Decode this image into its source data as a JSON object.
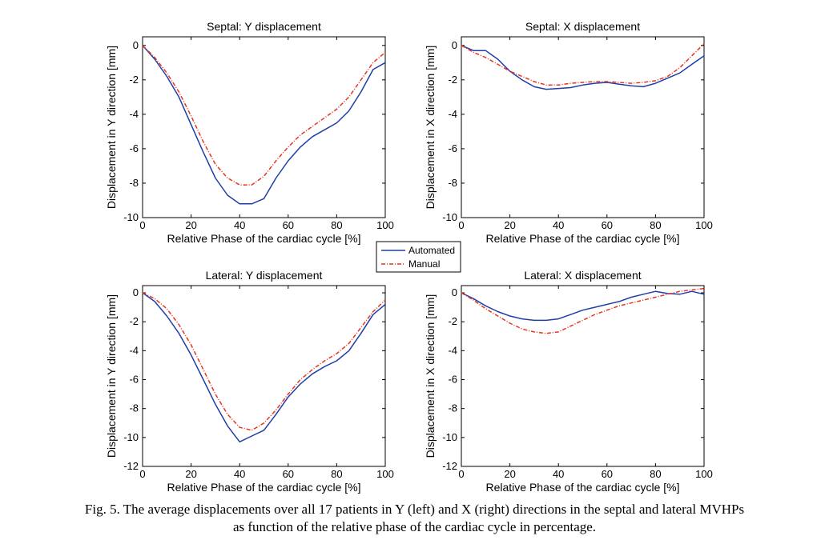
{
  "legend": {
    "entries": [
      {
        "label": "Automated",
        "color": "#1f3ea8",
        "style": "solid"
      },
      {
        "label": "Manual",
        "color": "#e8351f",
        "style": "dash-dot"
      }
    ]
  },
  "caption": {
    "line1": "Fig. 5. The average displacements over all 17 patients in Y (left) and X (right) directions in the septal and lateral MVHPs",
    "line2": "as function of the relative phase of the cardiac cycle in percentage."
  },
  "chart_data": [
    {
      "type": "line",
      "title": "Septal: Y displacement",
      "xlabel": "Relative Phase of the cardiac cycle [%]",
      "ylabel": "Displacement in Y direction [mm]",
      "xlim": [
        0,
        100
      ],
      "ylim": [
        -10,
        0.5
      ],
      "xticks": [
        0,
        20,
        40,
        60,
        80,
        100
      ],
      "yticks": [
        0,
        -2,
        -4,
        -6,
        -8,
        -10
      ],
      "grid": false,
      "x": [
        0,
        5,
        10,
        15,
        20,
        25,
        30,
        35,
        40,
        45,
        50,
        55,
        60,
        65,
        70,
        75,
        80,
        85,
        90,
        95,
        100
      ],
      "series": [
        {
          "name": "Automated",
          "values": [
            0,
            -0.8,
            -1.8,
            -3.0,
            -4.6,
            -6.2,
            -7.7,
            -8.7,
            -9.2,
            -9.2,
            -8.9,
            -7.7,
            -6.7,
            -5.9,
            -5.3,
            -4.9,
            -4.5,
            -3.8,
            -2.7,
            -1.4,
            -1.0
          ]
        },
        {
          "name": "Manual",
          "values": [
            0,
            -0.7,
            -1.6,
            -2.7,
            -4.1,
            -5.6,
            -6.9,
            -7.7,
            -8.1,
            -8.1,
            -7.6,
            -6.7,
            -5.9,
            -5.2,
            -4.7,
            -4.2,
            -3.7,
            -3.0,
            -2.0,
            -1.0,
            -0.4
          ]
        }
      ]
    },
    {
      "type": "line",
      "title": "Septal: X displacement",
      "xlabel": "Relative Phase of the cardiac cycle [%]",
      "ylabel": "Displacement in X direction [mm]",
      "xlim": [
        0,
        100
      ],
      "ylim": [
        -10,
        0.5
      ],
      "xticks": [
        0,
        20,
        40,
        60,
        80,
        100
      ],
      "yticks": [
        0,
        -2,
        -4,
        -6,
        -8,
        -10
      ],
      "grid": false,
      "x": [
        0,
        5,
        10,
        15,
        20,
        25,
        30,
        35,
        40,
        45,
        50,
        55,
        60,
        65,
        70,
        75,
        80,
        85,
        90,
        95,
        100
      ],
      "series": [
        {
          "name": "Automated",
          "values": [
            0,
            -0.3,
            -0.3,
            -0.8,
            -1.5,
            -2.0,
            -2.4,
            -2.55,
            -2.5,
            -2.45,
            -2.3,
            -2.2,
            -2.15,
            -2.25,
            -2.35,
            -2.4,
            -2.2,
            -1.9,
            -1.6,
            -1.1,
            -0.6
          ]
        },
        {
          "name": "Manual",
          "values": [
            0,
            -0.4,
            -0.7,
            -1.1,
            -1.5,
            -1.8,
            -2.1,
            -2.3,
            -2.3,
            -2.2,
            -2.15,
            -2.1,
            -2.1,
            -2.15,
            -2.2,
            -2.15,
            -2.05,
            -1.8,
            -1.3,
            -0.6,
            0.1
          ]
        }
      ]
    },
    {
      "type": "line",
      "title": "Lateral: Y displacement",
      "xlabel": "Relative Phase of the cardiac cycle [%]",
      "ylabel": "Displacement in Y direction [mm]",
      "xlim": [
        0,
        100
      ],
      "ylim": [
        -12,
        0.5
      ],
      "xticks": [
        0,
        20,
        40,
        60,
        80,
        100
      ],
      "yticks": [
        0,
        -2,
        -4,
        -6,
        -8,
        -10,
        -12
      ],
      "grid": false,
      "x": [
        0,
        5,
        10,
        15,
        20,
        25,
        30,
        35,
        40,
        45,
        50,
        55,
        60,
        65,
        70,
        75,
        80,
        85,
        90,
        95,
        100
      ],
      "series": [
        {
          "name": "Automated",
          "values": [
            0,
            -0.6,
            -1.6,
            -2.8,
            -4.3,
            -6.0,
            -7.7,
            -9.2,
            -10.3,
            -9.9,
            -9.5,
            -8.4,
            -7.2,
            -6.3,
            -5.6,
            -5.1,
            -4.7,
            -4.0,
            -2.8,
            -1.5,
            -0.8
          ]
        },
        {
          "name": "Manual",
          "values": [
            0,
            -0.4,
            -1.1,
            -2.2,
            -3.6,
            -5.3,
            -7.0,
            -8.4,
            -9.3,
            -9.5,
            -9.0,
            -8.1,
            -7.0,
            -6.0,
            -5.3,
            -4.7,
            -4.2,
            -3.5,
            -2.4,
            -1.3,
            -0.5
          ]
        }
      ]
    },
    {
      "type": "line",
      "title": "Lateral: X displacement",
      "xlabel": "Relative Phase of the cardiac cycle [%]",
      "ylabel": "Displacement in X direction [mm]",
      "xlim": [
        0,
        100
      ],
      "ylim": [
        -12,
        0.5
      ],
      "xticks": [
        0,
        20,
        40,
        60,
        80,
        100
      ],
      "yticks": [
        0,
        -2,
        -4,
        -6,
        -8,
        -10,
        -12
      ],
      "grid": false,
      "x": [
        0,
        5,
        10,
        15,
        20,
        25,
        30,
        35,
        40,
        45,
        50,
        55,
        60,
        65,
        70,
        75,
        80,
        85,
        90,
        95,
        100
      ],
      "series": [
        {
          "name": "Automated",
          "values": [
            0,
            -0.4,
            -0.9,
            -1.3,
            -1.6,
            -1.8,
            -1.9,
            -1.9,
            -1.8,
            -1.5,
            -1.2,
            -1.0,
            -0.8,
            -0.6,
            -0.3,
            -0.1,
            0.1,
            -0.05,
            -0.1,
            0.1,
            -0.1
          ]
        },
        {
          "name": "Manual",
          "values": [
            0,
            -0.5,
            -1.1,
            -1.6,
            -2.1,
            -2.5,
            -2.7,
            -2.8,
            -2.7,
            -2.3,
            -1.9,
            -1.5,
            -1.2,
            -0.9,
            -0.7,
            -0.5,
            -0.3,
            -0.1,
            0.1,
            0.2,
            0.3
          ]
        }
      ]
    }
  ]
}
